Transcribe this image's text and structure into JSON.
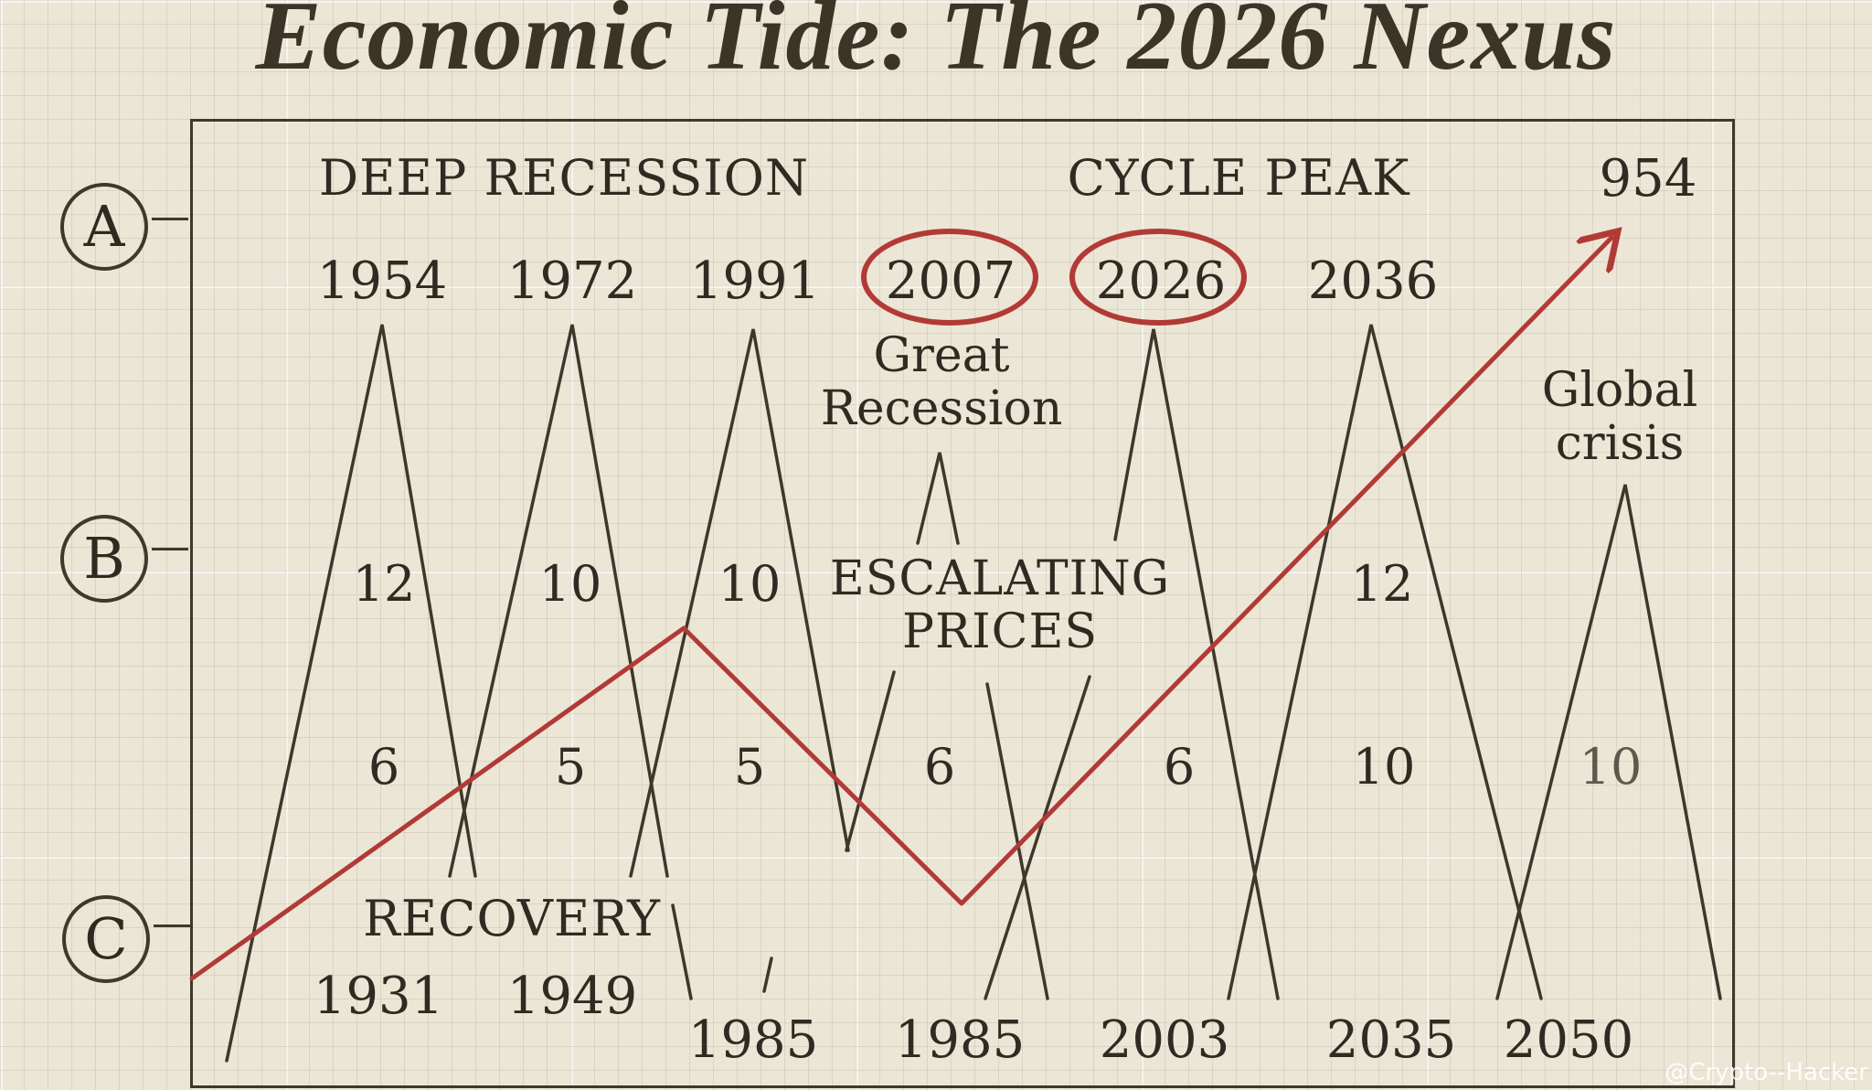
{
  "title": "Economic Tide: The 2026 Nexus",
  "row_labels": [
    "A",
    "B",
    "C"
  ],
  "headers": {
    "deep_recession": "DEEP RECESSION",
    "cycle_peak": "CYCLE PEAK",
    "corner_value": "954"
  },
  "peak_years": [
    "1954",
    "1972",
    "1991",
    "2007",
    "2026",
    "2036"
  ],
  "circled_years": [
    "2007",
    "2026"
  ],
  "notes": {
    "great_recession": "Great Recession",
    "global_crisis": "Global crisis",
    "escalating_prices": "ESCALATING PRICES",
    "recovery": "RECOVERY"
  },
  "row_b_values": [
    "12",
    "10",
    "10",
    "12"
  ],
  "row_c_values": [
    "6",
    "5",
    "5",
    "6",
    "6",
    "10",
    "10"
  ],
  "bottom_years": [
    "1931",
    "1949",
    "1985",
    "1985",
    "2003",
    "2035",
    "2050"
  ],
  "trend_color": "#b23a36",
  "watermark": "@Crypto--Hacker"
}
